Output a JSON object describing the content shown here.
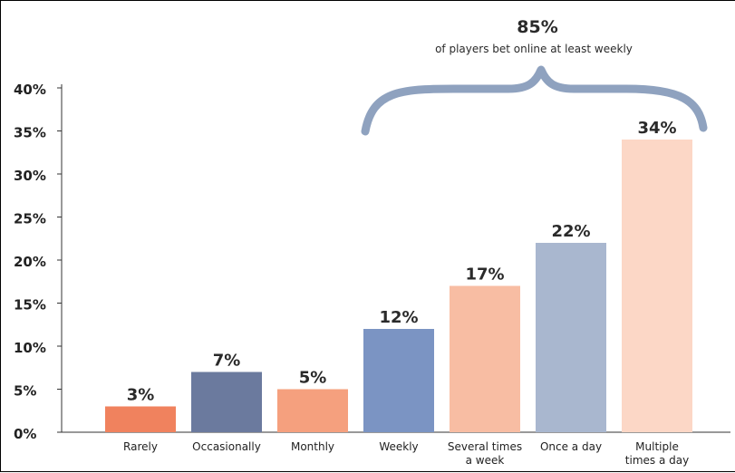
{
  "chart_data": {
    "type": "bar",
    "categories": [
      [
        "Rarely"
      ],
      [
        "Occasionally"
      ],
      [
        "Monthly"
      ],
      [
        "Weekly"
      ],
      [
        "Several times",
        "a week"
      ],
      [
        "Once a day"
      ],
      [
        "Multiple",
        "times a day"
      ]
    ],
    "values": [
      3,
      7,
      5,
      12,
      17,
      22,
      34
    ],
    "value_labels": [
      "3%",
      "7%",
      "5%",
      "12%",
      "17%",
      "22%",
      "34%"
    ],
    "colors": [
      "#f0825e",
      "#6b7a9e",
      "#f5a07e",
      "#7b94c3",
      "#f8bda3",
      "#a9b7cf",
      "#fcd7c6"
    ],
    "ylim": [
      0,
      40
    ],
    "yticks": [
      0,
      5,
      10,
      15,
      20,
      25,
      30,
      35,
      40
    ],
    "ytick_labels": [
      "0%",
      "5%",
      "10%",
      "15%",
      "20%",
      "25%",
      "30%",
      "35%",
      "40%"
    ],
    "grid": false,
    "brace_color": "#8fa2bf",
    "annotation": {
      "value": "85%",
      "text": "of players bet online at least weekly"
    }
  }
}
